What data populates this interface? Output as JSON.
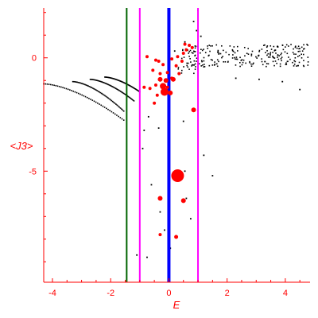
{
  "chart_data": {
    "type": "scatter",
    "title": "",
    "xlabel": "E",
    "ylabel": "<J3>",
    "xlim": [
      -4.3,
      4.85
    ],
    "ylim": [
      -9.9,
      2.2
    ],
    "x_ticks": [
      -4,
      -2,
      0,
      2,
      4
    ],
    "x_tick_labels": [
      "-4",
      "-2",
      "0",
      "2",
      "4"
    ],
    "y_ticks": [
      0,
      -5
    ],
    "y_tick_labels": [
      "0",
      "-5"
    ],
    "grid": false,
    "vertical_lines": [
      {
        "x": -1.45,
        "color": "#006400",
        "role": "green-line"
      },
      {
        "x": -1.0,
        "color": "#ff00ff",
        "role": "magenta-line-left"
      },
      {
        "x": 0.0,
        "color": "#0000ff",
        "role": "blue-line"
      },
      {
        "x": 1.0,
        "color": "#ff00ff",
        "role": "magenta-line-right"
      }
    ],
    "black_branches": [
      {
        "x_start": -4.3,
        "y_start": -1.15,
        "x_end": -1.55,
        "y_end": -2.75
      },
      {
        "x_start": -3.3,
        "y_start": -1.05,
        "x_end": -1.55,
        "y_end": -2.35
      },
      {
        "x_start": -2.7,
        "y_start": -0.95,
        "x_end": -1.2,
        "y_end": -1.9
      },
      {
        "x_start": -2.2,
        "y_start": -0.85,
        "x_end": -1.0,
        "y_end": -1.5
      }
    ],
    "black_bands": [
      {
        "x_start": 0.9,
        "x_end": 4.8,
        "y_center": 0.1,
        "y_spread": 0.5
      },
      {
        "x_start": 0.3,
        "x_end": 1.0,
        "y_center": -0.1,
        "y_spread": 0.6
      }
    ],
    "black_isolated_points": [
      {
        "x": 1.0,
        "y": 2.1
      },
      {
        "x": 0.85,
        "y": 1.6
      },
      {
        "x": 0.95,
        "y": 1.2
      },
      {
        "x": 1.1,
        "y": 0.95
      },
      {
        "x": 0.55,
        "y": 0.7
      },
      {
        "x": 0.2,
        "y": 0.3
      },
      {
        "x": -0.7,
        "y": -2.6
      },
      {
        "x": -0.85,
        "y": -3.2
      },
      {
        "x": -0.9,
        "y": -4.0
      },
      {
        "x": 1.2,
        "y": -4.3
      },
      {
        "x": 1.5,
        "y": -5.2
      },
      {
        "x": 0.55,
        "y": -5.0
      },
      {
        "x": 0.6,
        "y": -6.2
      },
      {
        "x": 0.75,
        "y": -7.1
      },
      {
        "x": -0.6,
        "y": -5.6
      },
      {
        "x": -1.1,
        "y": -8.7
      },
      {
        "x": -0.75,
        "y": -8.8
      },
      {
        "x": -0.15,
        "y": -7.6
      },
      {
        "x": 0.05,
        "y": -8.4
      },
      {
        "x": -0.3,
        "y": -6.8
      },
      {
        "x": 2.3,
        "y": -0.9
      },
      {
        "x": 3.1,
        "y": -0.95
      },
      {
        "x": 3.9,
        "y": -1.05
      },
      {
        "x": 4.5,
        "y": -1.4
      },
      {
        "x": -0.35,
        "y": -3.1
      },
      {
        "x": 0.5,
        "y": -2.8
      }
    ],
    "red_points": [
      {
        "x": -0.75,
        "y": 0.05,
        "size": 2
      },
      {
        "x": -0.45,
        "y": -0.1,
        "size": 2
      },
      {
        "x": -0.35,
        "y": -0.15,
        "size": 2
      },
      {
        "x": -0.2,
        "y": -0.3,
        "size": 2
      },
      {
        "x": 0.1,
        "y": -0.05,
        "size": 2
      },
      {
        "x": 0.3,
        "y": 0.05,
        "size": 2
      },
      {
        "x": 0.5,
        "y": 0.2,
        "size": 2
      },
      {
        "x": 0.6,
        "y": 0.35,
        "size": 2
      },
      {
        "x": 0.7,
        "y": 0.55,
        "size": 2
      },
      {
        "x": 0.55,
        "y": 0.6,
        "size": 2
      },
      {
        "x": 0.8,
        "y": 0.45,
        "size": 2
      },
      {
        "x": 0.45,
        "y": -0.15,
        "size": 2
      },
      {
        "x": 0.25,
        "y": -0.35,
        "size": 2
      },
      {
        "x": -0.05,
        "y": -0.65,
        "size": 2
      },
      {
        "x": -0.3,
        "y": -0.7,
        "size": 2
      },
      {
        "x": -0.55,
        "y": -0.55,
        "size": 2
      },
      {
        "x": -0.3,
        "y": -0.95,
        "size": 3
      },
      {
        "x": -0.1,
        "y": -1.0,
        "size": 3
      },
      {
        "x": 0.1,
        "y": -0.9,
        "size": 2
      },
      {
        "x": 0.35,
        "y": -0.7,
        "size": 2
      },
      {
        "x": -0.45,
        "y": -1.2,
        "size": 2
      },
      {
        "x": -0.2,
        "y": -1.25,
        "size": 4
      },
      {
        "x": -0.05,
        "y": -1.3,
        "size": 2
      },
      {
        "x": -0.15,
        "y": -1.5,
        "size": 5
      },
      {
        "x": 0.05,
        "y": -1.55,
        "size": 3
      },
      {
        "x": -0.65,
        "y": -1.35,
        "size": 2
      },
      {
        "x": -0.85,
        "y": -1.3,
        "size": 2
      },
      {
        "x": -0.4,
        "y": -1.65,
        "size": 2
      },
      {
        "x": -0.5,
        "y": -2.0,
        "size": 2
      },
      {
        "x": 0.15,
        "y": -0.95,
        "size": 3
      },
      {
        "x": 0.85,
        "y": -2.3,
        "size": 3
      },
      {
        "x": 0.3,
        "y": -5.2,
        "size": 8
      },
      {
        "x": -0.3,
        "y": -6.2,
        "size": 3
      },
      {
        "x": 0.5,
        "y": -6.3,
        "size": 3
      },
      {
        "x": 0.25,
        "y": -7.9,
        "size": 2.5
      },
      {
        "x": -0.3,
        "y": -7.8,
        "size": 2
      }
    ]
  }
}
